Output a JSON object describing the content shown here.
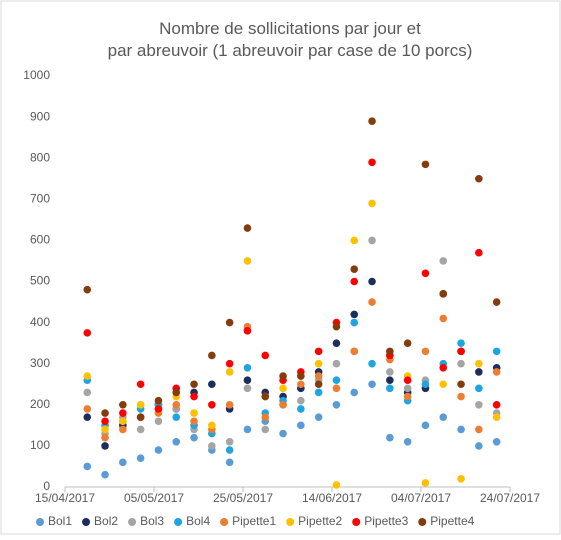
{
  "chart_data": {
    "type": "scatter",
    "title": "Nombre de sollicitations par jour et par abreuvoir (1 abreuvoir par case de 10 porcs)",
    "x": [
      "20/04/2017",
      "24/04/2017",
      "28/04/2017",
      "02/05/2017",
      "06/05/2017",
      "10/05/2017",
      "14/05/2017",
      "18/05/2017",
      "22/05/2017",
      "26/05/2017",
      "30/05/2017",
      "03/06/2017",
      "07/06/2017",
      "11/06/2017",
      "15/06/2017",
      "19/06/2017",
      "23/06/2017",
      "27/06/2017",
      "01/07/2017",
      "05/07/2017",
      "09/07/2017",
      "13/07/2017",
      "17/07/2017",
      "21/07/2017"
    ],
    "series": [
      {
        "name": "Bol1",
        "color": "#5b9bd5",
        "values": [
          50,
          30,
          60,
          70,
          90,
          110,
          120,
          90,
          60,
          140,
          160,
          130,
          150,
          170,
          200,
          230,
          250,
          120,
          110,
          150,
          170,
          140,
          100,
          110
        ]
      },
      {
        "name": "Bol2",
        "color": "#1f2d5c",
        "values": [
          170,
          100,
          150,
          170,
          200,
          190,
          230,
          250,
          190,
          260,
          230,
          220,
          240,
          280,
          350,
          420,
          500,
          260,
          230,
          240,
          470,
          330,
          280,
          290
        ]
      },
      {
        "name": "Bol3",
        "color": "#a5a5a5",
        "values": [
          230,
          130,
          170,
          140,
          160,
          190,
          140,
          100,
          110,
          240,
          140,
          200,
          210,
          260,
          300,
          330,
          600,
          280,
          240,
          260,
          550,
          300,
          200,
          180
        ]
      },
      {
        "name": "Bol4",
        "color": "#1ea4e0",
        "values": [
          260,
          150,
          160,
          190,
          200,
          170,
          150,
          130,
          90,
          290,
          180,
          210,
          190,
          230,
          260,
          400,
          300,
          240,
          210,
          250,
          300,
          350,
          240,
          330
        ]
      },
      {
        "name": "Pipette1",
        "color": "#ed7d31",
        "values": [
          190,
          120,
          140,
          170,
          180,
          200,
          160,
          140,
          200,
          390,
          170,
          200,
          250,
          270,
          240,
          330,
          450,
          310,
          220,
          330,
          410,
          220,
          140,
          280
        ]
      },
      {
        "name": "Pipette2",
        "color": "#ffc000",
        "values": [
          270,
          140,
          160,
          200,
          190,
          220,
          180,
          150,
          280,
          550,
          220,
          240,
          270,
          300,
          5,
          600,
          690,
          320,
          270,
          10,
          250,
          20,
          300,
          170
        ]
      },
      {
        "name": "Pipette3",
        "color": "#ff0000",
        "values": [
          375,
          160,
          180,
          250,
          190,
          240,
          220,
          200,
          300,
          380,
          320,
          260,
          280,
          330,
          400,
          500,
          790,
          320,
          260,
          520,
          290,
          330,
          570,
          200
        ]
      },
      {
        "name": "Pipette4",
        "color": "#843c0c",
        "values": [
          480,
          180,
          200,
          170,
          210,
          230,
          250,
          320,
          400,
          630,
          220,
          270,
          270,
          250,
          390,
          530,
          890,
          330,
          350,
          785,
          470,
          250,
          750,
          450
        ]
      }
    ],
    "xlim": [
      "15/04/2017",
      "24/07/2017"
    ],
    "xticks": [
      "15/04/2017",
      "05/05/2017",
      "25/05/2017",
      "14/06/2017",
      "04/07/2017",
      "24/07/2017"
    ],
    "ylim": [
      0,
      1000
    ],
    "yticks": [
      0,
      100,
      200,
      300,
      400,
      500,
      600,
      700,
      800,
      900,
      1000
    ],
    "grid": false
  }
}
